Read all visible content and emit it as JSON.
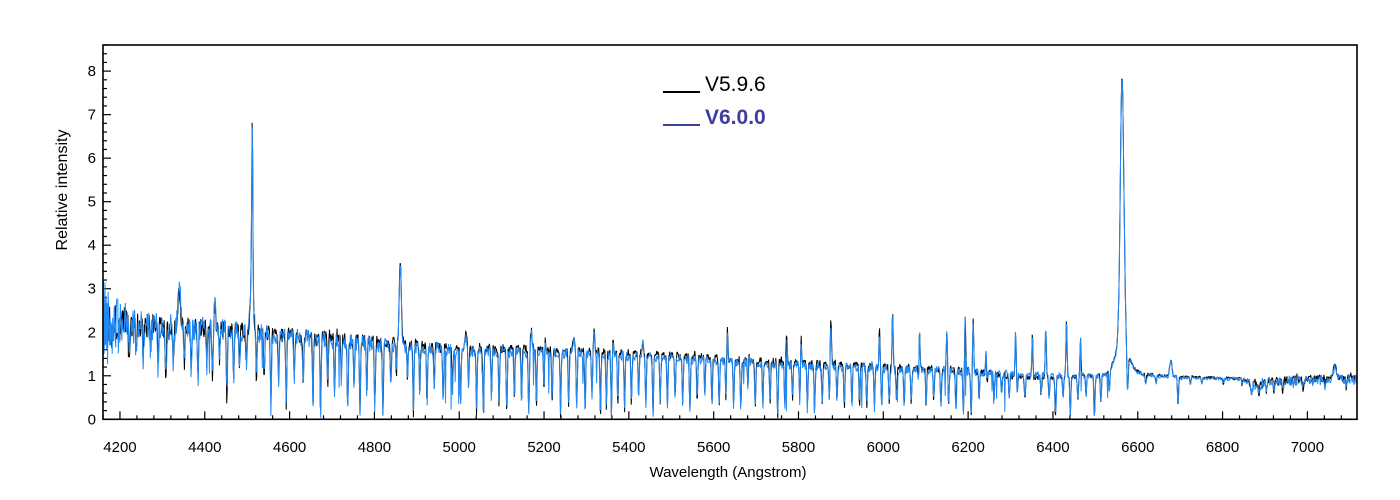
{
  "chart_data": {
    "type": "line",
    "title": "",
    "xlabel": "Wavelength (Angstrom)",
    "ylabel": "Relative intensity",
    "xlim": [
      4160,
      7117
    ],
    "ylim": [
      0,
      8.6
    ],
    "grid": false,
    "x_major_ticks": [
      4200,
      4400,
      4600,
      4800,
      5000,
      5200,
      5400,
      5600,
      5800,
      6000,
      6200,
      6400,
      6600,
      6800,
      7000
    ],
    "x_minor_step": 40,
    "y_major_ticks": [
      0,
      1,
      2,
      3,
      4,
      5,
      6,
      7,
      8
    ],
    "y_minor_step": 0.2,
    "legend": {
      "position": "upper-center",
      "entries": [
        {
          "label": "V5.9.6",
          "text_color": "#000000",
          "line_color": "#000000",
          "bold": false
        },
        {
          "label": "V6.0.0",
          "text_color": "#3c3f9d",
          "line_color": "#3c3f9d",
          "bold": true
        }
      ]
    },
    "series": [
      {
        "name": "V5.9.6",
        "plot_color": "#000000",
        "noise_seed": 1337,
        "noise_scale": 0.8,
        "hairs": false,
        "continuum_delta": [
          [
            4160,
            0
          ],
          [
            4400,
            0.02
          ],
          [
            4600,
            0.05
          ],
          [
            4700,
            0.08
          ],
          [
            5000,
            0.08
          ],
          [
            5400,
            0.07
          ],
          [
            5700,
            0.06
          ],
          [
            6000,
            0.05
          ],
          [
            6150,
            0.03
          ],
          [
            6230,
            0
          ],
          [
            6280,
            -0.05
          ],
          [
            6380,
            -0.05
          ],
          [
            6450,
            -0.02
          ],
          [
            6520,
            0.02
          ],
          [
            7117,
            0.02
          ]
        ]
      },
      {
        "name": "V6.0.0",
        "plot_color": "#2189f4",
        "noise_seed": 42,
        "noise_scale": 1.0,
        "hairs": true,
        "continuum_delta": [
          [
            4160,
            0
          ],
          [
            7117,
            0
          ]
        ]
      }
    ],
    "sample_step_angstrom": 1.2,
    "continuum": [
      [
        4160,
        2.3
      ],
      [
        4200,
        2.2
      ],
      [
        4300,
        2.12
      ],
      [
        4400,
        2.08
      ],
      [
        4500,
        2.0
      ],
      [
        4600,
        1.88
      ],
      [
        4700,
        1.8
      ],
      [
        4800,
        1.72
      ],
      [
        4900,
        1.63
      ],
      [
        5000,
        1.58
      ],
      [
        5100,
        1.55
      ],
      [
        5200,
        1.53
      ],
      [
        5300,
        1.5
      ],
      [
        5400,
        1.45
      ],
      [
        5500,
        1.4
      ],
      [
        5600,
        1.35
      ],
      [
        5700,
        1.28
      ],
      [
        5800,
        1.24
      ],
      [
        5900,
        1.2
      ],
      [
        6000,
        1.17
      ],
      [
        6100,
        1.13
      ],
      [
        6200,
        1.1
      ],
      [
        6280,
        1.05
      ],
      [
        6350,
        1.02
      ],
      [
        6420,
        1.0
      ],
      [
        6500,
        0.99
      ],
      [
        6540,
        1.01
      ],
      [
        6600,
        1.04
      ],
      [
        6650,
        0.99
      ],
      [
        6700,
        0.96
      ],
      [
        6780,
        0.94
      ],
      [
        6840,
        0.92
      ],
      [
        6880,
        0.8
      ],
      [
        6920,
        0.85
      ],
      [
        6960,
        0.88
      ],
      [
        7000,
        0.9
      ],
      [
        7040,
        0.92
      ],
      [
        7080,
        0.93
      ],
      [
        7117,
        0.9
      ]
    ],
    "noise_amplitude": [
      [
        4160,
        1.3
      ],
      [
        4175,
        0.9
      ],
      [
        4200,
        0.52
      ],
      [
        4240,
        0.42
      ],
      [
        4300,
        0.34
      ],
      [
        4400,
        0.27
      ],
      [
        4500,
        0.24
      ],
      [
        4600,
        0.22
      ],
      [
        4700,
        0.2
      ],
      [
        4800,
        0.18
      ],
      [
        4900,
        0.15
      ],
      [
        5000,
        0.14
      ],
      [
        5200,
        0.13
      ],
      [
        5400,
        0.12
      ],
      [
        5600,
        0.11
      ],
      [
        5800,
        0.11
      ],
      [
        6000,
        0.11
      ],
      [
        6200,
        0.1
      ],
      [
        6400,
        0.08
      ],
      [
        6550,
        0.06
      ],
      [
        6650,
        0.05
      ],
      [
        6750,
        0.04
      ],
      [
        6840,
        0.05
      ],
      [
        6880,
        0.14
      ],
      [
        6940,
        0.13
      ],
      [
        7000,
        0.11
      ],
      [
        7060,
        0.1
      ],
      [
        7117,
        0.12
      ]
    ],
    "emission_lines": [
      [
        4340,
        0.9,
        7
      ],
      [
        4424,
        0.5,
        4
      ],
      [
        4512,
        3.4,
        3
      ],
      [
        4511,
        1.4,
        8
      ],
      [
        4861,
        1.95,
        6
      ],
      [
        5016,
        0.33,
        5
      ],
      [
        5170,
        0.4,
        5
      ],
      [
        5202,
        0.35,
        4
      ],
      [
        5270,
        0.34,
        4
      ],
      [
        5318,
        0.45,
        4
      ],
      [
        5362,
        0.3,
        4
      ],
      [
        5433,
        0.3,
        4
      ],
      [
        5578,
        0.35,
        3
      ],
      [
        5632,
        0.78,
        3
      ],
      [
        5682,
        0.45,
        3
      ],
      [
        5772,
        0.72,
        3
      ],
      [
        5806,
        0.62,
        3
      ],
      [
        5876,
        1.05,
        4
      ],
      [
        5991,
        0.8,
        3
      ],
      [
        6022,
        1.28,
        3
      ],
      [
        6085,
        1.45,
        3
      ],
      [
        6150,
        0.85,
        3
      ],
      [
        6193,
        1.22,
        3
      ],
      [
        6212,
        1.2,
        3
      ],
      [
        6243,
        0.8,
        3
      ],
      [
        6312,
        1.0,
        3
      ],
      [
        6352,
        1.38,
        3
      ],
      [
        6383,
        1.18,
        3
      ],
      [
        6432,
        1.3,
        3
      ],
      [
        6465,
        0.92,
        3
      ],
      [
        6563,
        6.1,
        10
      ],
      [
        6563,
        0.75,
        36
      ],
      [
        6678,
        0.38,
        6
      ],
      [
        7065,
        0.3,
        8
      ]
    ],
    "absorption_lines": [
      [
        4222,
        1.35,
        3
      ],
      [
        4238,
        1.5,
        3
      ],
      [
        4255,
        1.3,
        3
      ],
      [
        4272,
        1.45,
        3
      ],
      [
        4290,
        1.25,
        3
      ],
      [
        4308,
        1.1,
        4
      ],
      [
        4326,
        1.35,
        3
      ],
      [
        4352,
        1.3,
        3
      ],
      [
        4368,
        1.05,
        3
      ],
      [
        4384,
        0.85,
        3
      ],
      [
        4405,
        1.25,
        3
      ],
      [
        4418,
        1.0,
        3
      ],
      [
        4435,
        1.3,
        3
      ],
      [
        4452,
        0.45,
        3
      ],
      [
        4468,
        0.95,
        3
      ],
      [
        4482,
        1.1,
        3
      ],
      [
        4498,
        1.25,
        3
      ],
      [
        4522,
        0.8,
        3
      ],
      [
        4540,
        1.05,
        3
      ],
      [
        4556,
        0.25,
        3
      ],
      [
        4574,
        0.85,
        3
      ],
      [
        4592,
        0.3,
        3
      ],
      [
        4611,
        1.0,
        3
      ],
      [
        4632,
        0.9,
        3
      ],
      [
        4655,
        0.35,
        3
      ],
      [
        4673,
        0.12,
        3
      ],
      [
        4690,
        0.85,
        3
      ],
      [
        4706,
        0.55,
        3
      ],
      [
        4722,
        0.9,
        3
      ],
      [
        4737,
        0.25,
        3
      ],
      [
        4752,
        0.8,
        3
      ],
      [
        4766,
        0.1,
        3
      ],
      [
        4782,
        0.55,
        3
      ],
      [
        4801,
        0.3,
        3
      ],
      [
        4820,
        0.12,
        3
      ],
      [
        4839,
        0.75,
        3
      ],
      [
        4852,
        1.05,
        2.5
      ],
      [
        4878,
        0.85,
        3
      ],
      [
        4892,
        0.1,
        3
      ],
      [
        4907,
        0.6,
        3
      ],
      [
        4924,
        0.35,
        3
      ],
      [
        4941,
        0.75,
        3
      ],
      [
        4962,
        0.45,
        3
      ],
      [
        4984,
        0.65,
        3
      ],
      [
        5003,
        0.35,
        3
      ],
      [
        5022,
        0.75,
        3
      ],
      [
        5041,
        0.15,
        3
      ],
      [
        5057,
        0.08,
        3
      ],
      [
        5076,
        0.5,
        3
      ],
      [
        5094,
        0.3,
        3
      ],
      [
        5112,
        0.18,
        3
      ],
      [
        5130,
        0.5,
        3
      ],
      [
        5147,
        0.4,
        3
      ],
      [
        5164,
        0.12,
        3
      ],
      [
        5182,
        0.25,
        3
      ],
      [
        5200,
        0.55,
        3
      ],
      [
        5219,
        0.45,
        3
      ],
      [
        5239,
        0.1,
        3
      ],
      [
        5258,
        0.35,
        3
      ],
      [
        5277,
        0.3,
        3
      ],
      [
        5297,
        0.2,
        3
      ],
      [
        5313,
        0.5,
        3
      ],
      [
        5333,
        0.05,
        3
      ],
      [
        5347,
        0.3,
        3
      ],
      [
        5359,
        0.03,
        3
      ],
      [
        5374,
        0.4,
        3
      ],
      [
        5390,
        0.22,
        3
      ],
      [
        5406,
        0.35,
        3
      ],
      [
        5423,
        0.5,
        3
      ],
      [
        5440,
        0.28,
        3
      ],
      [
        5457,
        0.05,
        3
      ],
      [
        5474,
        0.4,
        3
      ],
      [
        5491,
        0.3,
        3
      ],
      [
        5509,
        0.45,
        3
      ],
      [
        5527,
        0.3,
        3
      ],
      [
        5544,
        0.2,
        3
      ],
      [
        5561,
        0.4,
        3
      ],
      [
        5579,
        0.3,
        3
      ],
      [
        5596,
        0.35,
        3
      ],
      [
        5613,
        0.28,
        3
      ],
      [
        5629,
        0.45,
        3
      ],
      [
        5647,
        0.3,
        3
      ],
      [
        5664,
        0.25,
        3
      ],
      [
        5681,
        0.4,
        3
      ],
      [
        5698,
        0.28,
        3
      ],
      [
        5716,
        0.3,
        3
      ],
      [
        5733,
        0.42,
        3
      ],
      [
        5751,
        0.06,
        3
      ],
      [
        5768,
        0.3,
        3
      ],
      [
        5786,
        0.5,
        3
      ],
      [
        5803,
        0.35,
        3
      ],
      [
        5821,
        0.28,
        3
      ],
      [
        5838,
        0.18,
        3
      ],
      [
        5856,
        0.32,
        3
      ],
      [
        5873,
        0.25,
        3
      ],
      [
        5891,
        0.4,
        3
      ],
      [
        5908,
        0.3,
        3
      ],
      [
        5926,
        0.28,
        3
      ],
      [
        5944,
        0.35,
        3
      ],
      [
        5961,
        0.3,
        3
      ],
      [
        5979,
        0.25,
        3
      ],
      [
        5996,
        0.4,
        3
      ],
      [
        6014,
        0.3,
        3
      ],
      [
        6031,
        0.38,
        3
      ],
      [
        6049,
        0.28,
        3
      ],
      [
        6066,
        0.35,
        3
      ],
      [
        6084,
        0.3,
        3
      ],
      [
        6101,
        0.28,
        3
      ],
      [
        6119,
        0.38,
        3
      ],
      [
        6136,
        0.35,
        3
      ],
      [
        6154,
        0.3,
        3
      ],
      [
        6171,
        0.28,
        3
      ],
      [
        6189,
        0.08,
        3
      ],
      [
        6207,
        0.12,
        3
      ],
      [
        6226,
        0.45,
        3
      ],
      [
        6244,
        0.5,
        3
      ],
      [
        6261,
        0.55,
        3
      ],
      [
        6279,
        0.6,
        3
      ],
      [
        6297,
        0.5,
        3
      ],
      [
        6316,
        0.55,
        3
      ],
      [
        6334,
        0.5,
        3
      ],
      [
        6353,
        0.45,
        3
      ],
      [
        6372,
        0.55,
        3
      ],
      [
        6391,
        0.5,
        3
      ],
      [
        6406,
        0.05,
        3
      ],
      [
        6424,
        0.5,
        3
      ],
      [
        6441,
        0.12,
        3
      ],
      [
        6459,
        0.5,
        3
      ],
      [
        6478,
        0.55,
        3
      ],
      [
        6498,
        0.05,
        3
      ],
      [
        6513,
        0.4,
        3
      ],
      [
        6533,
        0.55,
        3
      ],
      [
        6576,
        0.08,
        4
      ],
      [
        6619,
        0.78,
        3
      ],
      [
        6643,
        0.8,
        3
      ],
      [
        6695,
        0.3,
        3
      ],
      [
        6724,
        0.78,
        3
      ],
      [
        6751,
        0.8,
        3
      ],
      [
        6802,
        0.8,
        2.5
      ],
      [
        6846,
        0.76,
        2.5
      ],
      [
        6868,
        0.55,
        5
      ],
      [
        6886,
        0.58,
        3
      ],
      [
        6903,
        0.6,
        3
      ],
      [
        6921,
        0.62,
        3
      ],
      [
        6942,
        0.65,
        3
      ],
      [
        6990,
        0.7,
        2.5
      ],
      [
        7042,
        0.72,
        2.5
      ],
      [
        7092,
        0.7,
        2.5
      ]
    ]
  }
}
